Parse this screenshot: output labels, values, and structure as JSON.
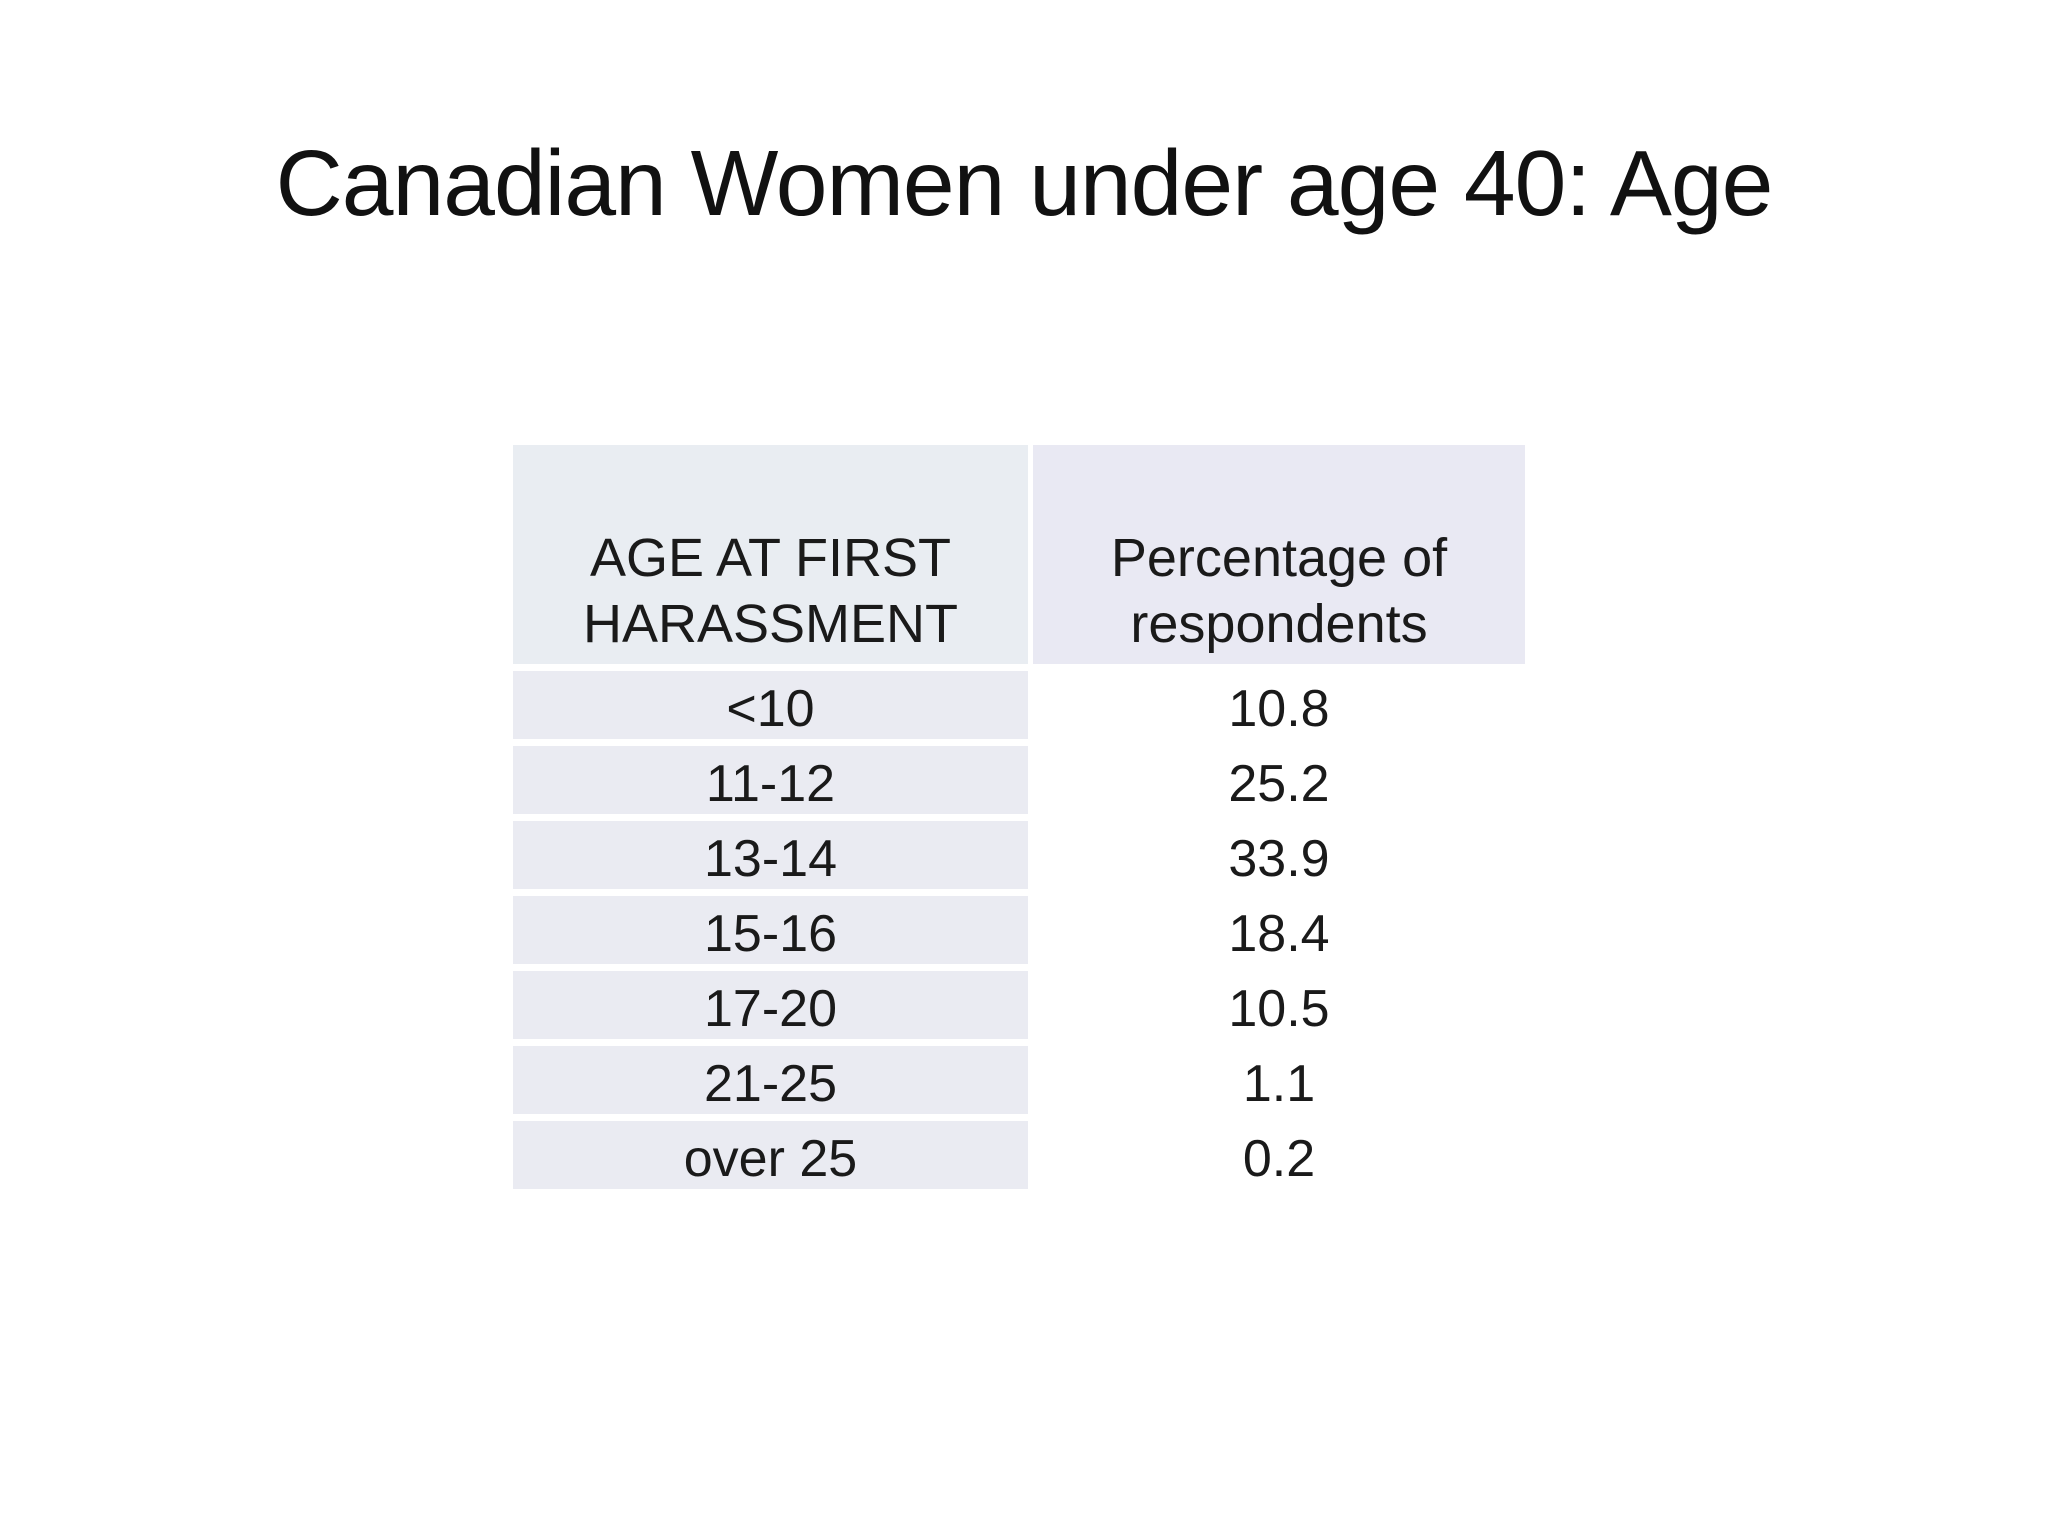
{
  "title": "Canadian Women under age 40: Age",
  "table": {
    "col1_header": "AGE AT FIRST HARASSMENT",
    "col2_header": "Percentage of respondents",
    "rows": [
      {
        "age": "<10",
        "pct": "10.8"
      },
      {
        "age": "11-12",
        "pct": "25.2"
      },
      {
        "age": "13-14",
        "pct": "33.9"
      },
      {
        "age": "15-16",
        "pct": "18.4"
      },
      {
        "age": "17-20",
        "pct": "10.5"
      },
      {
        "age": "21-25",
        "pct": "1.1"
      },
      {
        "age": "over 25",
        "pct": "0.2"
      }
    ]
  },
  "colors": {
    "header_col1_bg": "#e9edf2",
    "header_col2_bg": "#e9e9f3",
    "body_col1_bg": "#eaebf2",
    "body_col2_bg": "#ffffff",
    "text": "#1a1a1a"
  },
  "chart_data": {
    "type": "table",
    "title": "Canadian Women under age 40: Age",
    "columns": [
      "AGE AT FIRST HARASSMENT",
      "Percentage of respondents"
    ],
    "categories": [
      "<10",
      "11-12",
      "13-14",
      "15-16",
      "17-20",
      "21-25",
      "over 25"
    ],
    "values": [
      10.8,
      25.2,
      33.9,
      18.4,
      10.5,
      1.1,
      0.2
    ]
  }
}
